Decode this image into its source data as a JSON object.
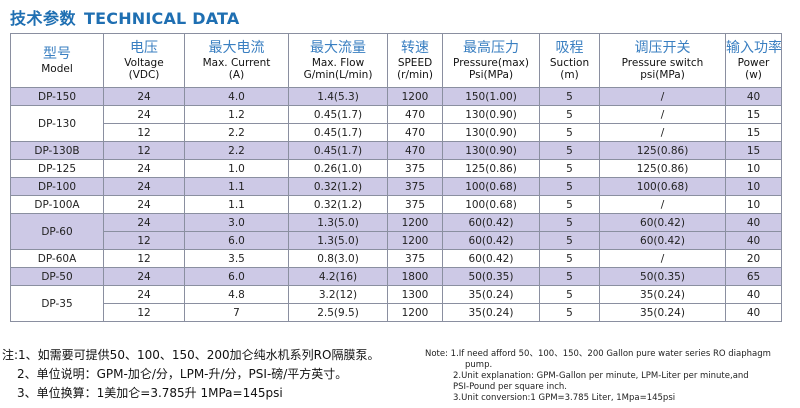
{
  "title": {
    "cn": "技术参数",
    "en": "TECHNICAL DATA"
  },
  "columns": [
    {
      "cn": "型号",
      "en": [
        "Model"
      ]
    },
    {
      "cn": "电压",
      "en": [
        "Voltage",
        "(VDC)"
      ]
    },
    {
      "cn": "最大电流",
      "en": [
        "Max. Current",
        "(A)"
      ]
    },
    {
      "cn": "最大流量",
      "en": [
        "Max. Flow",
        "G/min(L/min)"
      ]
    },
    {
      "cn": "转速",
      "en": [
        "SPEED",
        "(r/min)"
      ]
    },
    {
      "cn": "最高压力",
      "en": [
        "Pressure(max)",
        "Psi(MPa)"
      ]
    },
    {
      "cn": "吸程",
      "en": [
        "Suction",
        "(m)"
      ]
    },
    {
      "cn": "调压开关",
      "en": [
        "Pressure switch",
        "psi(MPa)"
      ]
    },
    {
      "cn": "输入功率",
      "en": [
        "Power",
        "(w)"
      ]
    }
  ],
  "groups": [
    {
      "model": "DP-150",
      "highlight": true,
      "rows": [
        {
          "shade": true,
          "v": [
            "24",
            "4.0",
            "1.4(5.3)",
            "1200",
            "150(1.00)",
            "5",
            "/",
            "40"
          ]
        }
      ]
    },
    {
      "model": "DP-130",
      "highlight": false,
      "rows": [
        {
          "shade": false,
          "v": [
            "24",
            "1.2",
            "0.45(1.7)",
            "470",
            "130(0.90)",
            "5",
            "/",
            "15"
          ]
        },
        {
          "shade": false,
          "v": [
            "12",
            "2.2",
            "0.45(1.7)",
            "470",
            "130(0.90)",
            "5",
            "/",
            "15"
          ]
        }
      ]
    },
    {
      "model": "DP-130B",
      "highlight": true,
      "rows": [
        {
          "shade": true,
          "v": [
            "12",
            "2.2",
            "0.45(1.7)",
            "470",
            "130(0.90)",
            "5",
            "125(0.86)",
            "15"
          ]
        }
      ]
    },
    {
      "model": "DP-125",
      "highlight": false,
      "rows": [
        {
          "shade": false,
          "v": [
            "24",
            "1.0",
            "0.26(1.0)",
            "375",
            "125(0.86)",
            "5",
            "125(0.86)",
            "10"
          ]
        }
      ]
    },
    {
      "model": "DP-100",
      "highlight": true,
      "rows": [
        {
          "shade": true,
          "v": [
            "24",
            "1.1",
            "0.32(1.2)",
            "375",
            "100(0.68)",
            "5",
            "100(0.68)",
            "10"
          ]
        }
      ]
    },
    {
      "model": "DP-100A",
      "highlight": false,
      "rows": [
        {
          "shade": false,
          "v": [
            "24",
            "1.1",
            "0.32(1.2)",
            "375",
            "100(0.68)",
            "5",
            "/",
            "10"
          ]
        }
      ]
    },
    {
      "model": "DP-60",
      "highlight": true,
      "rows": [
        {
          "shade": true,
          "v": [
            "24",
            "3.0",
            "1.3(5.0)",
            "1200",
            "60(0.42)",
            "5",
            "60(0.42)",
            "40"
          ]
        },
        {
          "shade": true,
          "v": [
            "12",
            "6.0",
            "1.3(5.0)",
            "1200",
            "60(0.42)",
            "5",
            "60(0.42)",
            "40"
          ]
        }
      ]
    },
    {
      "model": "DP-60A",
      "highlight": false,
      "rows": [
        {
          "shade": false,
          "v": [
            "12",
            "3.5",
            "0.8(3.0)",
            "375",
            "60(0.42)",
            "5",
            "/",
            "20"
          ]
        }
      ]
    },
    {
      "model": "DP-50",
      "highlight": true,
      "rows": [
        {
          "shade": true,
          "v": [
            "24",
            "6.0",
            "4.2(16)",
            "1800",
            "50(0.35)",
            "5",
            "50(0.35)",
            "65"
          ]
        }
      ]
    },
    {
      "model": "DP-35",
      "highlight": false,
      "rows": [
        {
          "shade": false,
          "v": [
            "24",
            "4.8",
            "3.2(12)",
            "1300",
            "35(0.24)",
            "5",
            "35(0.24)",
            "40"
          ]
        },
        {
          "shade": false,
          "v": [
            "12",
            "7",
            "2.5(9.5)",
            "1200",
            "35(0.24)",
            "5",
            "35(0.24)",
            "40"
          ]
        }
      ]
    }
  ],
  "notes_cn": [
    "注:1、如需要可提供50、100、150、200加仑纯水机系列RO隔膜泵。",
    "2、单位说明：GPM-加仑/分，LPM-升/分，PSI-磅/平方英寸。",
    "3、单位换算：1美加仑=3.785升  1MPa=145psi"
  ],
  "notes_en": [
    "Note: 1.If  need  afford 50、100、150、200  Gallon pure  water  series RO diaphagm",
    "pump.",
    "2.Unit  explanation: GPM-Gallon  per  minute, LPM-Liter  per  minute,and",
    "PSI-Pound  per  square  inch.",
    "3.Unit  conversion:1 GPM=3.785  Liter,  1Mpa=145psi"
  ]
}
